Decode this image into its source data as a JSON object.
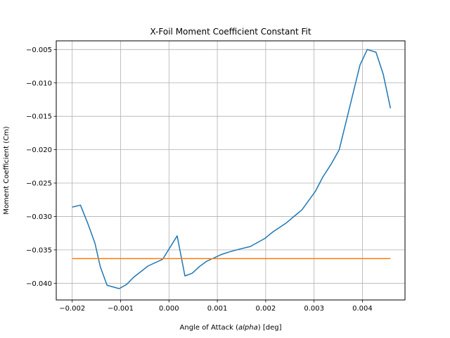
{
  "chart_data": {
    "type": "line",
    "title": "X-Foil Moment Coefficient Constant Fit",
    "xlabel_prefix": "Angle of Attack (",
    "xlabel_italic": "alpha",
    "xlabel_suffix": ") [deg]",
    "ylabel": "Moment Coefficient (Cm)",
    "xlim": [
      -0.00233,
      0.00488
    ],
    "ylim": [
      -0.0425,
      -0.0037
    ],
    "grid": true,
    "x_ticks": [
      -0.002,
      -0.001,
      0.0,
      0.001,
      0.002,
      0.003,
      0.004
    ],
    "x_tick_labels": [
      "−0.002",
      "−0.001",
      "0.000",
      "0.001",
      "0.002",
      "0.003",
      "0.004"
    ],
    "y_ticks": [
      -0.04,
      -0.035,
      -0.03,
      -0.025,
      -0.02,
      -0.015,
      -0.01,
      -0.005
    ],
    "y_tick_labels": [
      "−0.040",
      "−0.035",
      "−0.030",
      "−0.025",
      "−0.020",
      "−0.015",
      "−0.010",
      "−0.005"
    ],
    "series": [
      {
        "color": "#1f77b4",
        "x": [
          -0.002,
          -0.00183,
          -0.00168,
          -0.00153,
          -0.00142,
          -0.00128,
          -0.00103,
          -0.00088,
          -0.00073,
          -0.00043,
          -0.00013,
          0.00017,
          0.00033,
          0.00048,
          0.00063,
          0.00078,
          0.00093,
          0.00108,
          0.00125,
          0.00145,
          0.00168,
          0.00198,
          0.00215,
          0.00242,
          0.0026,
          0.00275,
          0.00303,
          0.00318,
          0.00335,
          0.00352,
          0.0037,
          0.00395,
          0.0041,
          0.00428,
          0.00443,
          0.00458
        ],
        "y": [
          -0.0286,
          -0.0283,
          -0.031,
          -0.034,
          -0.0375,
          -0.0403,
          -0.0408,
          -0.0402,
          -0.0391,
          -0.0374,
          -0.0364,
          -0.0329,
          -0.0389,
          -0.0385,
          -0.0375,
          -0.0367,
          -0.0362,
          -0.0357,
          -0.0353,
          -0.0349,
          -0.0345,
          -0.0333,
          -0.0323,
          -0.031,
          -0.0299,
          -0.029,
          -0.0262,
          -0.0241,
          -0.0222,
          -0.02,
          -0.0147,
          -0.0073,
          -0.005,
          -0.0054,
          -0.0087,
          -0.0138
        ]
      },
      {
        "color": "#ff7f0e",
        "x": [
          -0.002,
          0.00458
        ],
        "y": [
          -0.0363,
          -0.0363
        ]
      }
    ]
  }
}
